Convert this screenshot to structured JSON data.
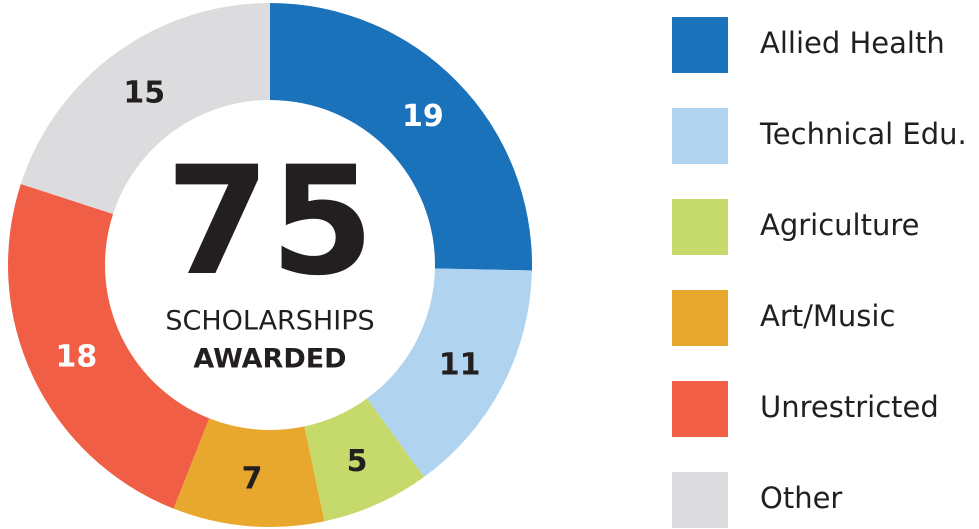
{
  "chart_data": {
    "type": "donut",
    "categories": [
      "Allied Health",
      "Technical Edu.",
      "Agriculture",
      "Art/Music",
      "Unrestricted",
      "Other"
    ],
    "values": [
      19,
      11,
      5,
      7,
      18,
      15
    ],
    "colors": [
      "#1a72bb",
      "#b0d3ef",
      "#c5da6a",
      "#e8a82e",
      "#ef5e45",
      "#dcdcde"
    ],
    "center_value": 75,
    "center_label": "SCHOLARSHIPS",
    "center_sublabel": "AWARDED",
    "legend": "right"
  }
}
